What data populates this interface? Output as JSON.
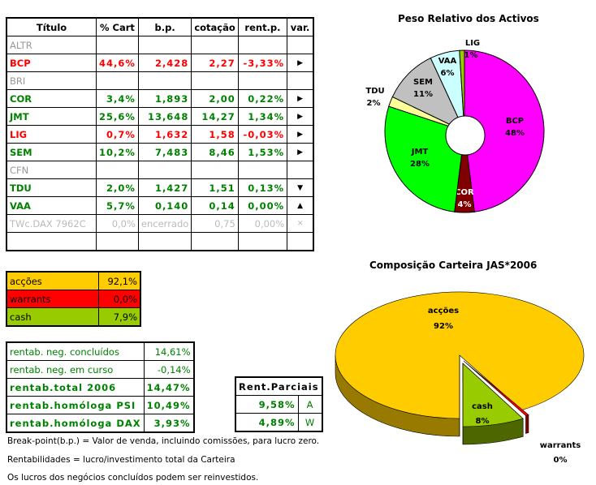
{
  "portfolio_table": {
    "headers": [
      "Título",
      "% Cart",
      "b.p.",
      "cotação",
      "rent.p.",
      "var."
    ],
    "rows": [
      {
        "titulo": "ALTR",
        "cart": "",
        "bp": "",
        "cot": "",
        "rent": "",
        "var": "",
        "status": "inactive"
      },
      {
        "titulo": "BCP",
        "cart": "44,6%",
        "bp": "2,428",
        "cot": "2,27",
        "rent": "-3,33%",
        "var": "right-triangle-icon",
        "status": "negative"
      },
      {
        "titulo": "BRI",
        "cart": "",
        "bp": "",
        "cot": "",
        "rent": "",
        "var": "",
        "status": "inactive"
      },
      {
        "titulo": "COR",
        "cart": "3,4%",
        "bp": "1,893",
        "cot": "2,00",
        "rent": "0,22%",
        "var": "right-triangle-icon",
        "status": "positive"
      },
      {
        "titulo": "JMT",
        "cart": "25,6%",
        "bp": "13,648",
        "cot": "14,27",
        "rent": "1,34%",
        "var": "right-triangle-icon",
        "status": "positive"
      },
      {
        "titulo": "LIG",
        "cart": "0,7%",
        "bp": "1,632",
        "cot": "1,58",
        "rent": "-0,03%",
        "var": "right-triangle-icon",
        "status": "negative"
      },
      {
        "titulo": "SEM",
        "cart": "10,2%",
        "bp": "7,483",
        "cot": "8,46",
        "rent": "1,53%",
        "var": "right-triangle-icon",
        "status": "positive"
      },
      {
        "titulo": "CFN",
        "cart": "",
        "bp": "",
        "cot": "",
        "rent": "",
        "var": "",
        "status": "inactive"
      },
      {
        "titulo": "TDU",
        "cart": "2,0%",
        "bp": "1,427",
        "cot": "1,51",
        "rent": "0,13%",
        "var": "down-triangle-icon",
        "status": "positive"
      },
      {
        "titulo": "VAA",
        "cart": "5,7%",
        "bp": "0,140",
        "cot": "0,14",
        "rent": "0,00%",
        "var": "up-triangle-icon",
        "status": "positive"
      },
      {
        "titulo": "TWc.DAX 7962C",
        "cart": "0,0%",
        "bp": "encerrado",
        "cot": "0,75",
        "rent": "0,00%",
        "var": "x-icon",
        "status": "closed"
      },
      {
        "titulo": "",
        "cart": "",
        "bp": "",
        "cot": "",
        "rent": "",
        "var": "",
        "status": "inactive"
      }
    ]
  },
  "allocation": [
    {
      "label": "acções",
      "value": "92,1%",
      "color": "#FFCC00"
    },
    {
      "label": "warrants",
      "value": "0,0%",
      "color": "#FF0000"
    },
    {
      "label": "cash",
      "value": "7,9%",
      "color": "#99CC00"
    }
  ],
  "returns": [
    {
      "label": "rentab. neg. concluídos",
      "value": "14,61%",
      "bold": false
    },
    {
      "label": "rentab. neg. em curso",
      "value": "-0,14%",
      "bold": false
    },
    {
      "label": "rentab.total 2006",
      "value": "14,47%",
      "bold": true
    },
    {
      "label": "rentab.homóloga PSI",
      "value": "10,49%",
      "bold": true
    },
    {
      "label": "rentab.homóloga DAX",
      "value": "3,93%",
      "bold": true
    }
  ],
  "partial": {
    "title": "Rent.Parciais",
    "rows": [
      {
        "value": "9,58%",
        "tag": "A"
      },
      {
        "value": "4,89%",
        "tag": "W"
      }
    ]
  },
  "notes": [
    "Break-point(b.p.) = Valor de venda, incluindo comissões, para lucro zero.",
    "Rentabilidades = lucro/investimento total da Carteira",
    "Os lucros dos negócios concluídos podem ser reinvestidos."
  ],
  "colors": {
    "positive": "#008000",
    "negative": "#FF0000",
    "inactive": "#999999",
    "closed": "#BBBBBB"
  },
  "chart_data": [
    {
      "type": "pie",
      "title": "Peso Relativo dos Activos",
      "variant": "doughnut",
      "categories": [
        "BCP",
        "COR",
        "JMT",
        "TDU",
        "SEM",
        "VAA",
        "LIG"
      ],
      "values": [
        48,
        4,
        28,
        2,
        11,
        6,
        1
      ],
      "labels": [
        "48%",
        "4%",
        "28%",
        "2%",
        "11%",
        "6%",
        "1%"
      ],
      "colors": [
        "#FF00FF",
        "#800000",
        "#00FF00",
        "#FFFF99",
        "#C0C0C0",
        "#CCFFFF",
        "#99CC00"
      ]
    },
    {
      "type": "pie",
      "title": "Composição Carteira JAS*2006",
      "variant": "3d-exploded",
      "categories": [
        "acções",
        "warrants",
        "cash"
      ],
      "values": [
        92,
        0,
        8
      ],
      "labels": [
        "92%",
        "0%",
        "8%"
      ],
      "colors": [
        "#FFCC00",
        "#FF0000",
        "#99CC00"
      ]
    }
  ]
}
